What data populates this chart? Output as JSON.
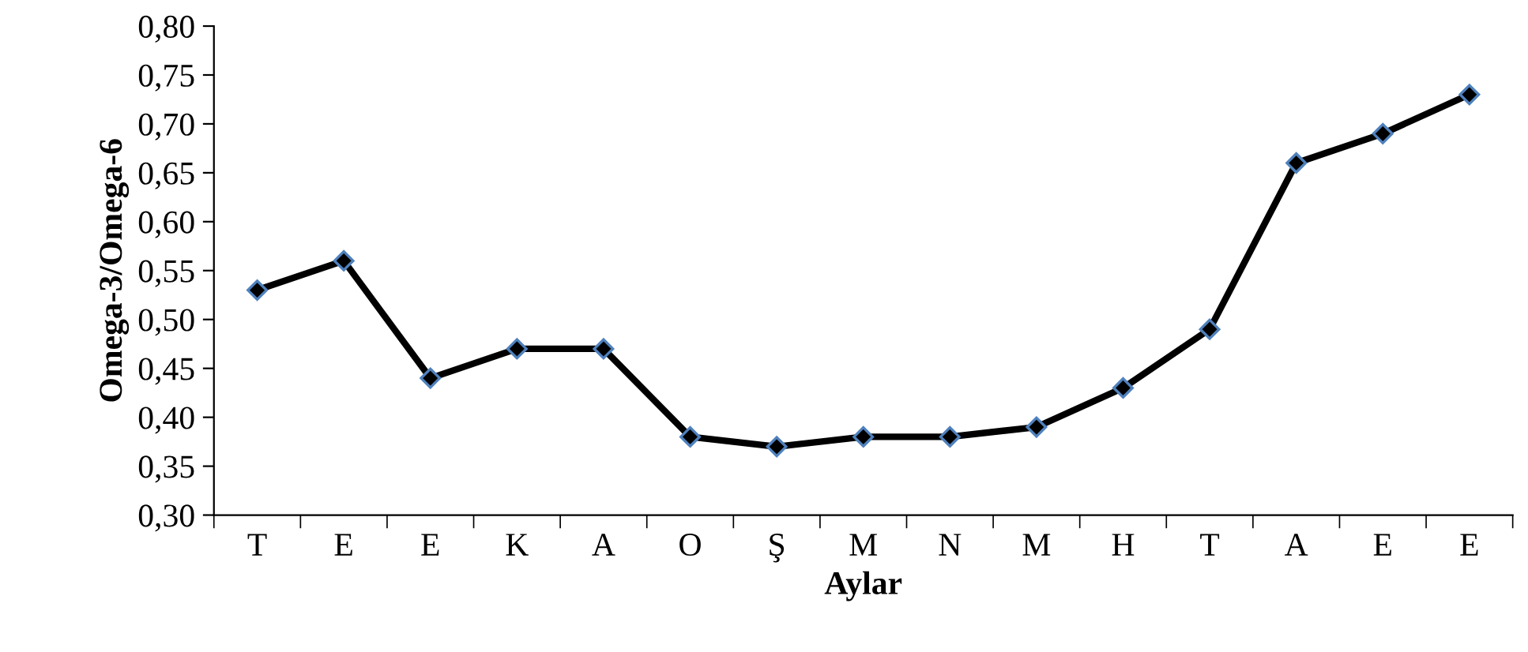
{
  "chart_data": {
    "type": "line",
    "xlabel": "Aylar",
    "ylabel": "Omega-3/Omega-6",
    "categories": [
      "T",
      "E",
      "E",
      "K",
      "A",
      "O",
      "Ş",
      "M",
      "N",
      "M",
      "H",
      "T",
      "A",
      "E",
      "E"
    ],
    "series": [
      {
        "color": "#000000",
        "values": [
          0.53,
          0.56,
          0.44,
          0.47,
          0.47,
          0.38,
          0.37,
          0.38,
          0.38,
          0.39,
          0.43,
          0.49,
          0.66,
          0.69,
          0.73
        ]
      }
    ],
    "ylim": [
      0.3,
      0.8
    ],
    "yticks": [
      {
        "value": 0.3,
        "label": "0,30"
      },
      {
        "value": 0.35,
        "label": "0,35"
      },
      {
        "value": 0.4,
        "label": "0,40"
      },
      {
        "value": 0.45,
        "label": "0,45"
      },
      {
        "value": 0.5,
        "label": "0,50"
      },
      {
        "value": 0.55,
        "label": "0,55"
      },
      {
        "value": 0.6,
        "label": "0,60"
      },
      {
        "value": 0.65,
        "label": "0,65"
      },
      {
        "value": 0.7,
        "label": "0,70"
      },
      {
        "value": 0.75,
        "label": "0,75"
      },
      {
        "value": 0.8,
        "label": "0,80"
      }
    ],
    "grid": false,
    "legend": false,
    "marker": "diamond",
    "line_style": "solid"
  }
}
